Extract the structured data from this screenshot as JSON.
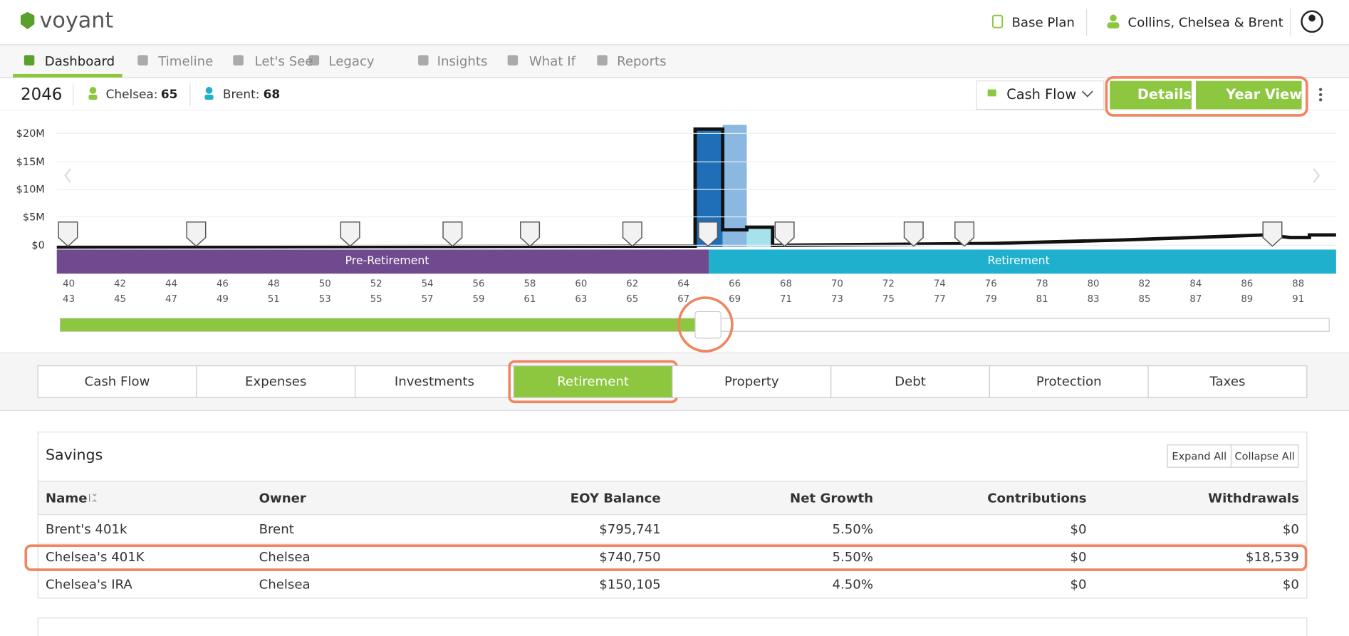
{
  "header": {
    "brand": "voyant",
    "plan": "Base Plan",
    "client": "Collins, Chelsea & Brent"
  },
  "nav": {
    "items": [
      "Dashboard",
      "Timeline",
      "Let's See",
      "Legacy",
      "Insights",
      "What If",
      "Reports"
    ]
  },
  "yearbar": {
    "year": "2046",
    "people": [
      {
        "name": "Chelsea:",
        "age": "65"
      },
      {
        "name": "Brent:",
        "age": "68"
      }
    ],
    "view": "Cash Flow",
    "buttons": [
      "Details",
      "Year View"
    ]
  },
  "chart": {
    "yticks": [
      "$20M",
      "$15M",
      "$10M",
      "$5M",
      "$0"
    ],
    "phases": [
      "Pre-Retirement",
      "Retirement"
    ],
    "ages_top": [
      "40",
      "42",
      "44",
      "46",
      "48",
      "50",
      "52",
      "54",
      "56",
      "58",
      "60",
      "62",
      "64",
      "66",
      "68",
      "70",
      "72",
      "74",
      "76",
      "78",
      "80",
      "82",
      "84",
      "86",
      "88"
    ],
    "ages_bottom": [
      "43",
      "45",
      "47",
      "49",
      "51",
      "53",
      "55",
      "57",
      "59",
      "61",
      "63",
      "65",
      "67",
      "69",
      "71",
      "73",
      "75",
      "77",
      "79",
      "81",
      "83",
      "85",
      "87",
      "89",
      "91"
    ]
  },
  "tabs": {
    "items": [
      "Cash Flow",
      "Expenses",
      "Investments",
      "Retirement",
      "Property",
      "Debt",
      "Protection",
      "Taxes"
    ]
  },
  "savings": {
    "title": "Savings",
    "buttons": [
      "Expand All",
      "Collapse All"
    ],
    "columns": [
      "Name",
      "Owner",
      "EOY Balance",
      "Net Growth",
      "Contributions",
      "Withdrawals"
    ],
    "rows": [
      [
        "Brent's 401k",
        "Brent",
        "$795,741",
        "5.50%",
        "$0",
        "$0"
      ],
      [
        "Chelsea's 401K",
        "Chelsea",
        "$740,750",
        "5.50%",
        "$0",
        "$18,539"
      ],
      [
        "Chelsea's IRA",
        "Chelsea",
        "$150,105",
        "4.50%",
        "$0",
        "$0"
      ]
    ]
  }
}
